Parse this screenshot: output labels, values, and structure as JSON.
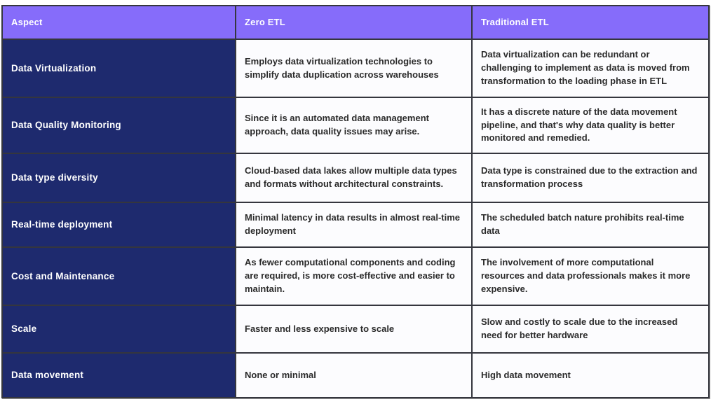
{
  "theme": {
    "header-bg": "#866CFA",
    "aspect-bg": "#1E2A6E",
    "body-bg": "#FCFCFE",
    "grid-border": "#35363E",
    "header-text": "#FFFFFF",
    "body-text": "#2B2B2B"
  },
  "table": {
    "columns": [
      "Aspect",
      "Zero ETL",
      "Traditional ETL"
    ],
    "rows": [
      {
        "aspect": "Data Virtualization",
        "zero_etl": "Employs data virtualization technologies to simplify data duplication across warehouses",
        "traditional_etl": "Data virtualization can be redundant or challenging to implement as data is moved from transformation to the loading phase in ETL"
      },
      {
        "aspect": "Data Quality Monitoring",
        "zero_etl": "Since it is an automated data management approach, data quality issues may arise.",
        "traditional_etl": "It has a discrete nature of the data movement pipeline, and that's why data quality is better monitored and remedied."
      },
      {
        "aspect": "Data type diversity",
        "zero_etl": "Cloud-based data lakes allow multiple data types and formats without architectural constraints.",
        "traditional_etl": "Data type is constrained due to the extraction and transformation process"
      },
      {
        "aspect": "Real-time deployment",
        "zero_etl": "Minimal latency in data results in almost real-time deployment",
        "traditional_etl": "The scheduled batch nature prohibits real-time data"
      },
      {
        "aspect": "Cost and Maintenance",
        "zero_etl": "As fewer computational components and coding are required, is more cost-effective and easier to maintain.",
        "traditional_etl": "The involvement of more computational resources and data professionals makes it more expensive."
      },
      {
        "aspect": "Scale",
        "zero_etl": "Faster and less expensive to scale",
        "traditional_etl": "Slow and costly to scale due to the increased need for better hardware"
      },
      {
        "aspect": "Data movement",
        "zero_etl": "None or minimal",
        "traditional_etl": "High data movement"
      }
    ]
  }
}
